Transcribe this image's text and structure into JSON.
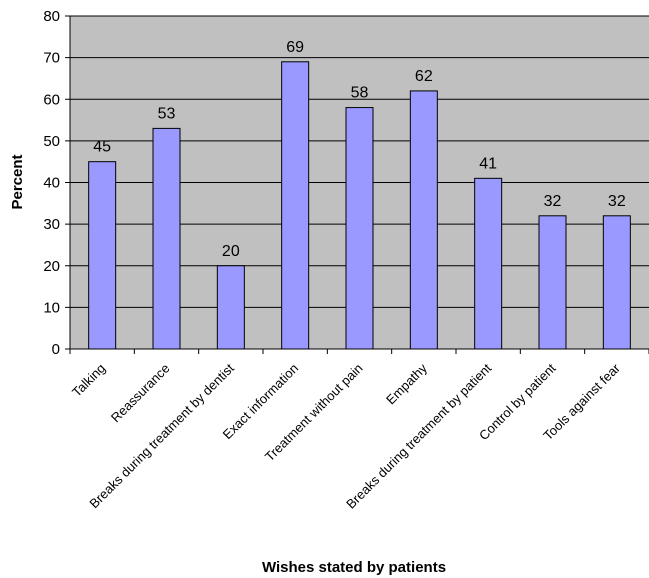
{
  "chart_data": {
    "type": "bar",
    "categories": [
      "Talking",
      "Reassurance",
      "Breaks during treatment by dentist",
      "Exact information",
      "Treatment without pain",
      "Empathy",
      "Breaks during treatment by patient",
      "Control by patient",
      "Tools against fear"
    ],
    "values": [
      45,
      53,
      20,
      69,
      58,
      62,
      41,
      32,
      32
    ],
    "data_labels": [
      "45",
      "53",
      "20",
      "69",
      "58",
      "62",
      "41",
      "32",
      "32"
    ],
    "xlabel": "Wishes stated by patients",
    "ylabel": "Percent",
    "ylim": [
      0,
      80
    ],
    "yticks": [
      0,
      10,
      20,
      30,
      40,
      50,
      60,
      70,
      80
    ],
    "grid": true,
    "colors": {
      "plot_background": "#c0c0c0",
      "bar_fill": "#9999ff",
      "bar_stroke": "#000000",
      "gridline": "#000000"
    }
  }
}
